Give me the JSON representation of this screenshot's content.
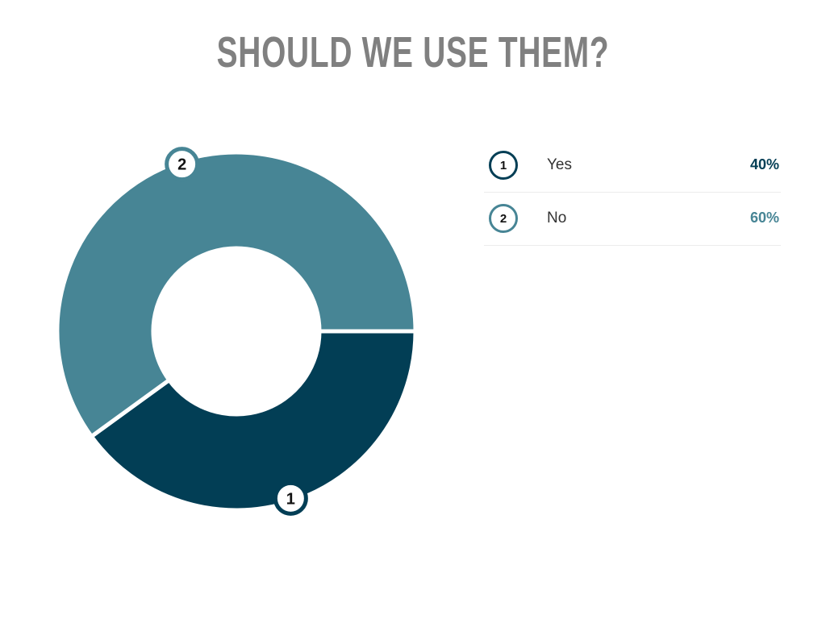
{
  "title": "SHOULD WE USE THEM?",
  "chart_data": {
    "type": "pie",
    "donut": true,
    "categories": [
      "Yes",
      "No"
    ],
    "values": [
      40,
      60
    ],
    "markers": [
      "1",
      "2"
    ],
    "colors": [
      "#023e55",
      "#478595"
    ],
    "legend": "right"
  },
  "legend": [
    {
      "num": "1",
      "label": "Yes",
      "value": "40%",
      "color": "#023e55"
    },
    {
      "num": "2",
      "label": "No",
      "value": "60%",
      "color": "#478595"
    }
  ]
}
